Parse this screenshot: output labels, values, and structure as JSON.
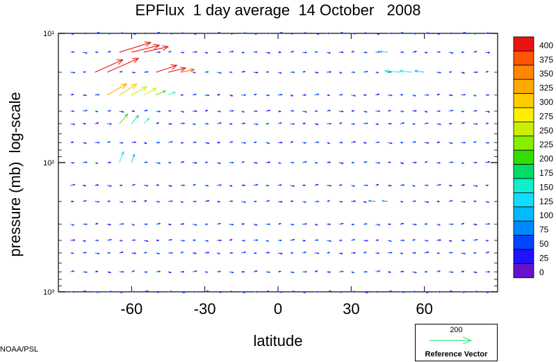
{
  "title": "EPFlux  1 day average  14 October   2008",
  "credit": "NOAA/PSL",
  "reference": {
    "magnitude": "200",
    "label": "Reference Vector",
    "color": "#33ee88"
  },
  "chart_data": {
    "type": "vector field",
    "title": "EPFlux  1 day average  14 October   2008",
    "xlabel": "latitude",
    "ylabel": "pressure (mb)  log-scale",
    "x_range": [
      -90,
      90
    ],
    "y_range_mb": [
      1000,
      10
    ],
    "y_scale": "log",
    "x_tick_labels": [
      "-60",
      "-30",
      "0",
      "30",
      "60"
    ],
    "y_tick_labels": [
      "10¹",
      "10²",
      "10³"
    ],
    "colorbar": {
      "levels": [
        "400",
        "375",
        "350",
        "325",
        "300",
        "275",
        "250",
        "225",
        "200",
        "175",
        "150",
        "125",
        "100",
        "75",
        "50",
        "25",
        "0"
      ],
      "colors": [
        "#ee1111",
        "#ff5500",
        "#ff8800",
        "#ffaa00",
        "#ffcc00",
        "#ffee00",
        "#ccee00",
        "#88ee00",
        "#33dd00",
        "#00dd66",
        "#11eecc",
        "#11ddff",
        "#00bbff",
        "#0088ff",
        "#0044ff",
        "#2211ff",
        "#6611cc"
      ]
    },
    "grid": false,
    "legend_position": "right",
    "vector_rows_mb": [
      10,
      14,
      20,
      30,
      40,
      50,
      70,
      100,
      150,
      200,
      300,
      400,
      500,
      700,
      1000
    ],
    "vector_columns_deg": [
      -85,
      -80,
      -75,
      -70,
      -65,
      -60,
      -55,
      -50,
      -45,
      -40,
      -35,
      -30,
      -25,
      -20,
      -15,
      -10,
      -5,
      0,
      5,
      10,
      15,
      20,
      25,
      30,
      35,
      40,
      45,
      50,
      55,
      60,
      65,
      70,
      75,
      80,
      85
    ],
    "notable_vectors": [
      {
        "lat": -75,
        "p": 20,
        "u": 40,
        "v": 18,
        "mag": 400
      },
      {
        "lat": -70,
        "p": 20,
        "u": 45,
        "v": 20,
        "mag": 400
      },
      {
        "lat": -65,
        "p": 14,
        "u": 45,
        "v": 14,
        "mag": 400
      },
      {
        "lat": -60,
        "p": 14,
        "u": 40,
        "v": 10,
        "mag": 400
      },
      {
        "lat": -55,
        "p": 14,
        "u": 35,
        "v": 8,
        "mag": 400
      },
      {
        "lat": -50,
        "p": 20,
        "u": 30,
        "v": 10,
        "mag": 400
      },
      {
        "lat": -45,
        "p": 20,
        "u": 25,
        "v": 6,
        "mag": 400
      },
      {
        "lat": -40,
        "p": 20,
        "u": 20,
        "v": 4,
        "mag": 380
      },
      {
        "lat": -70,
        "p": 30,
        "u": 28,
        "v": 16,
        "mag": 330
      },
      {
        "lat": -65,
        "p": 30,
        "u": 25,
        "v": 16,
        "mag": 300
      },
      {
        "lat": -60,
        "p": 30,
        "u": 22,
        "v": 12,
        "mag": 270
      },
      {
        "lat": -55,
        "p": 30,
        "u": 18,
        "v": 10,
        "mag": 250
      },
      {
        "lat": -50,
        "p": 30,
        "u": 14,
        "v": 6,
        "mag": 220
      },
      {
        "lat": -45,
        "p": 30,
        "u": 10,
        "v": 4,
        "mag": 160
      },
      {
        "lat": -65,
        "p": 50,
        "u": 12,
        "v": 14,
        "mag": 200
      },
      {
        "lat": -60,
        "p": 50,
        "u": 10,
        "v": 12,
        "mag": 180
      },
      {
        "lat": -55,
        "p": 50,
        "u": 8,
        "v": 8,
        "mag": 150
      },
      {
        "lat": -65,
        "p": 100,
        "u": 6,
        "v": 16,
        "mag": 130
      },
      {
        "lat": -60,
        "p": 100,
        "u": 4,
        "v": 12,
        "mag": 110
      },
      {
        "lat": 50,
        "p": 20,
        "u": -22,
        "v": 2,
        "mag": 170
      },
      {
        "lat": 55,
        "p": 20,
        "u": -18,
        "v": 2,
        "mag": 150
      },
      {
        "lat": 60,
        "p": 20,
        "u": -14,
        "v": 2,
        "mag": 120
      },
      {
        "lat": 45,
        "p": 14,
        "u": -12,
        "v": 1,
        "mag": 110
      },
      {
        "lat": 40,
        "p": 200,
        "u": -10,
        "v": 1,
        "mag": 90
      },
      {
        "lat": 45,
        "p": 200,
        "u": -8,
        "v": 1,
        "mag": 80
      }
    ]
  }
}
